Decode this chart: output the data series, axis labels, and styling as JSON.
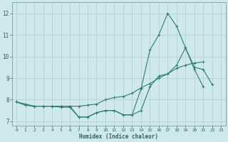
{
  "xlabel": "Humidex (Indice chaleur)",
  "x": [
    0,
    1,
    2,
    3,
    4,
    5,
    6,
    7,
    8,
    9,
    10,
    11,
    12,
    13,
    14,
    15,
    16,
    17,
    18,
    19,
    20,
    21,
    22,
    23
  ],
  "line1": [
    7.9,
    7.8,
    7.7,
    7.7,
    7.7,
    7.7,
    7.7,
    7.2,
    7.2,
    7.4,
    7.5,
    7.5,
    7.3,
    7.3,
    8.5,
    10.3,
    11.0,
    12.0,
    11.4,
    10.4,
    9.4,
    8.6,
    null,
    null
  ],
  "line2": [
    7.9,
    7.75,
    7.7,
    7.7,
    7.7,
    7.7,
    7.7,
    7.7,
    7.75,
    7.8,
    8.0,
    8.1,
    8.15,
    8.3,
    8.55,
    8.75,
    9.0,
    9.2,
    9.45,
    9.6,
    9.7,
    9.75,
    null,
    null
  ],
  "line3": [
    7.9,
    7.75,
    7.7,
    7.7,
    7.7,
    7.65,
    7.65,
    7.2,
    7.2,
    7.4,
    7.5,
    7.5,
    7.3,
    7.3,
    7.5,
    8.6,
    9.1,
    9.2,
    9.6,
    10.4,
    9.5,
    9.4,
    8.7,
    null
  ],
  "line_color": "#2e7d72",
  "bg_color": "#cfe8eb",
  "grid_color": "#aecfd4",
  "xlim": [
    -0.5,
    23.5
  ],
  "ylim": [
    6.8,
    12.5
  ],
  "yticks": [
    7,
    8,
    9,
    10,
    11,
    12
  ],
  "xticks": [
    0,
    1,
    2,
    3,
    4,
    5,
    6,
    7,
    8,
    9,
    10,
    11,
    12,
    13,
    14,
    15,
    16,
    17,
    18,
    19,
    20,
    21,
    22,
    23
  ]
}
